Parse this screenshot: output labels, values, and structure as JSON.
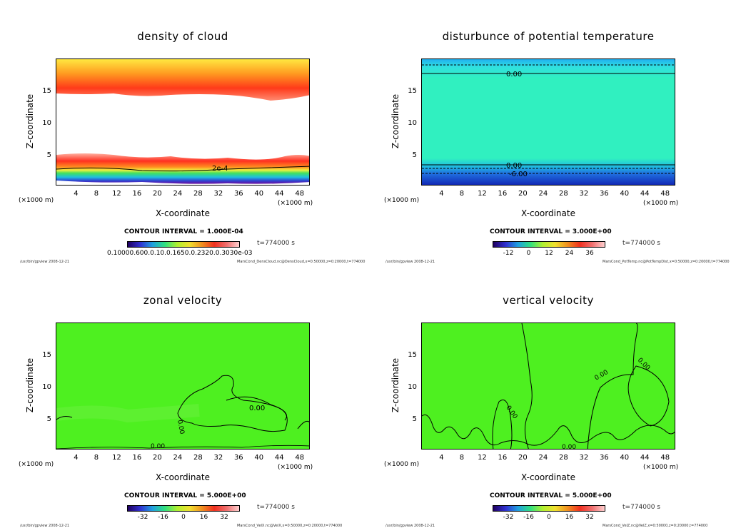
{
  "panels": [
    {
      "title": "density of cloud",
      "ylabel": "Z-coordinate",
      "xlabel": "X-coordinate",
      "xunit_left": "(×1000 m)",
      "xunit_right": "(×1000 m)",
      "contour_interval": "CONTOUR INTERVAL = 1.000E-04",
      "timestamp": "t=774000 s",
      "colorbar_labels_text": "0.10000.600.0.10.0.1650.0.2320.0.3030e-03",
      "contour_labels": [
        "2e-4"
      ],
      "footer_path": "/usr/bin/gpview",
      "footer_date": "2008-12-21",
      "footer_file": "MarsCond_DensCloud.nc@DensCloud,x=0:50000,z=0:20000,t=774000"
    },
    {
      "title": "disturbunce of potential temperature",
      "ylabel": "Z-coordinate",
      "xlabel": "X-coordinate",
      "xunit_left": "(×1000 m)",
      "xunit_right": "(×1000 m)",
      "contour_interval": "CONTOUR INTERVAL = 3.000E+00",
      "timestamp": "t=774000 s",
      "colorbar_ticks": [
        "-12",
        "0",
        "12",
        "24",
        "36"
      ],
      "contour_labels": [
        "0.00",
        "0.00",
        "-6.00"
      ],
      "footer_path": "/usr/bin/gpview",
      "footer_date": "2008-12-21",
      "footer_file": "MarsCond_PotTemp.nc@PotTempDist,x=0:50000,z=0:20000,t=774000"
    },
    {
      "title": "zonal velocity",
      "ylabel": "Z-coordinate",
      "xlabel": "X-coordinate",
      "xunit_left": "(×1000 m)",
      "xunit_right": "(×1000 m)",
      "contour_interval": "CONTOUR INTERVAL = 5.000E+00",
      "timestamp": "t=774000 s",
      "colorbar_ticks": [
        "-32",
        "-16",
        "0",
        "16",
        "32"
      ],
      "contour_labels": [
        "0.00",
        "0.00",
        "0.00"
      ],
      "footer_path": "/usr/bin/gpview",
      "footer_date": "2008-12-21",
      "footer_file": "MarsCond_VelX.nc@VelX,x=0:50000,z=0:20000,t=774000"
    },
    {
      "title": "vertical velocity",
      "ylabel": "Z-coordinate",
      "xlabel": "X-coordinate",
      "xunit_left": "(×1000 m)",
      "xunit_right": "(×1000 m)",
      "contour_interval": "CONTOUR INTERVAL = 5.000E+00",
      "timestamp": "t=774000 s",
      "colorbar_ticks": [
        "-32",
        "-16",
        "0",
        "16",
        "32"
      ],
      "contour_labels": [
        "0.00",
        "0.00",
        "0.00",
        "0.00"
      ],
      "footer_path": "/usr/bin/gpview",
      "footer_date": "2008-12-21",
      "footer_file": "MarsCond_VelZ.nc@VelZ,x=0:50000,z=0:20000,t=774000"
    }
  ],
  "chart_data": [
    {
      "type": "heatmap",
      "title": "density of cloud",
      "xlabel": "X-coordinate",
      "ylabel": "Z-coordinate",
      "x_ticks": [
        4,
        8,
        12,
        16,
        20,
        24,
        28,
        32,
        36,
        40,
        44,
        48
      ],
      "y_ticks": [
        5,
        10,
        15
      ],
      "xlim": [
        0,
        50
      ],
      "ylim": [
        0,
        20
      ],
      "contour_interval": "1.000E-04"
    },
    {
      "type": "heatmap",
      "title": "disturbunce of potential temperature",
      "xlabel": "X-coordinate",
      "ylabel": "Z-coordinate",
      "x_ticks": [
        4,
        8,
        12,
        16,
        20,
        24,
        28,
        32,
        36,
        40,
        44,
        48
      ],
      "y_ticks": [
        5,
        10,
        15
      ],
      "xlim": [
        0,
        50
      ],
      "ylim": [
        0,
        20
      ],
      "contour_interval": "3.000E+00",
      "colorbar_ticks": [
        -12,
        0,
        12,
        24,
        36
      ]
    },
    {
      "type": "heatmap",
      "title": "zonal velocity",
      "xlabel": "X-coordinate",
      "ylabel": "Z-coordinate",
      "x_ticks": [
        4,
        8,
        12,
        16,
        20,
        24,
        28,
        32,
        36,
        40,
        44,
        48
      ],
      "y_ticks": [
        5,
        10,
        15
      ],
      "xlim": [
        0,
        50
      ],
      "ylim": [
        0,
        20
      ],
      "contour_interval": "5.000E+00",
      "colorbar_ticks": [
        -32,
        -16,
        0,
        16,
        32
      ]
    },
    {
      "type": "heatmap",
      "title": "vertical velocity",
      "xlabel": "X-coordinate",
      "ylabel": "Z-coordinate",
      "x_ticks": [
        4,
        8,
        12,
        16,
        20,
        24,
        28,
        32,
        36,
        40,
        44,
        48
      ],
      "y_ticks": [
        5,
        10,
        15
      ],
      "xlim": [
        0,
        50
      ],
      "ylim": [
        0,
        20
      ],
      "contour_interval": "5.000E+00",
      "colorbar_ticks": [
        -32,
        -16,
        0,
        16,
        32
      ]
    }
  ],
  "colors": {
    "cloud_warm": "#ff3020",
    "cloud_yellow": "#ffe040",
    "temp_field": "#30f0c0",
    "temp_low": "#2030d0",
    "velocity_field": "#4ef020"
  }
}
